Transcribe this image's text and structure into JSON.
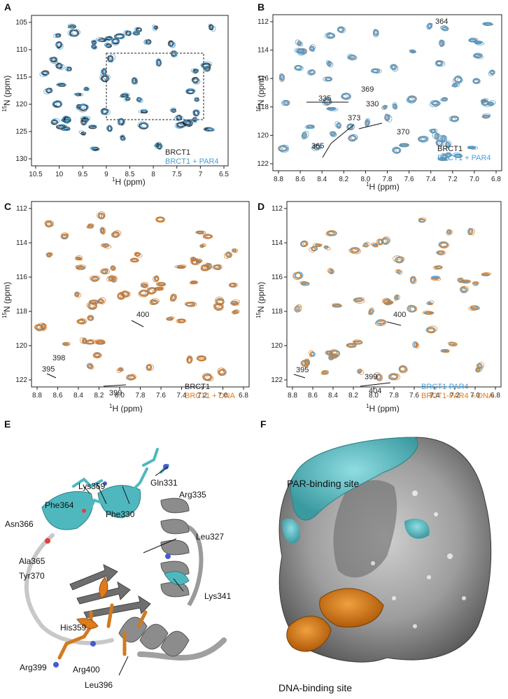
{
  "panels": {
    "A": {
      "letter": "A",
      "ylabel_prefix": "15",
      "ylabel_main": "N (ppm)",
      "xlabel_prefix": "1",
      "xlabel_main": "H (ppm)",
      "xticks": [
        "10.5",
        "10",
        "9.5",
        "9",
        "8.5",
        "8",
        "7.5",
        "7",
        "6.5"
      ],
      "yticks": [
        "105",
        "110",
        "115",
        "120",
        "125",
        "130"
      ],
      "legend": [
        {
          "text": "BRCT1",
          "color": "#1a1a1a"
        },
        {
          "text": "BRCT1 + PAR4",
          "color": "#4a9fd5"
        }
      ]
    },
    "B": {
      "letter": "B",
      "ylabel_prefix": "15",
      "ylabel_main": "N (ppm)",
      "xlabel_prefix": "1",
      "xlabel_main": "H (ppm)",
      "xticks": [
        "8.8",
        "8.6",
        "8.4",
        "8.2",
        "8.0",
        "7.8",
        "7.6",
        "7.4",
        "7.2",
        "7.0",
        "6.8"
      ],
      "yticks": [
        "112",
        "114",
        "116",
        "118",
        "120",
        "122"
      ],
      "annotations": [
        "364",
        "369",
        "335",
        "330",
        "373",
        "370",
        "365"
      ],
      "legend": [
        {
          "text": "BRCT1",
          "color": "#1a1a1a"
        },
        {
          "text": "BRCT1 + PAR4",
          "color": "#4a9fd5"
        }
      ]
    },
    "C": {
      "letter": "C",
      "ylabel_prefix": "15",
      "ylabel_main": "N (ppm)",
      "xlabel_prefix": "1",
      "xlabel_main": "H (ppm)",
      "xticks": [
        "8.8",
        "8.6",
        "8.4",
        "8.2",
        "8.0",
        "7.8",
        "7.6",
        "7.4",
        "7.2",
        "7.0",
        "6.8"
      ],
      "yticks": [
        "112",
        "114",
        "116",
        "118",
        "120",
        "122"
      ],
      "annotations": [
        "400",
        "398",
        "395",
        "399"
      ],
      "legend": [
        {
          "text": "BRCT1",
          "color": "#1a1a1a"
        },
        {
          "text": "BRCT1 + DNA",
          "color": "#e07a1a"
        }
      ]
    },
    "D": {
      "letter": "D",
      "ylabel_prefix": "15",
      "ylabel_main": "N (ppm)",
      "xlabel_prefix": "1",
      "xlabel_main": "H (ppm)",
      "xticks": [
        "8.8",
        "8.6",
        "8.4",
        "8.2",
        "8.0",
        "7.8",
        "7.6",
        "7.4",
        "7.2",
        "7.0",
        "6.8"
      ],
      "yticks": [
        "112",
        "114",
        "116",
        "118",
        "120",
        "122"
      ],
      "annotations": [
        "400",
        "395",
        "399",
        "404"
      ],
      "legend": [
        {
          "text": "BRCT1-PAR4",
          "color": "#4a9fd5"
        },
        {
          "text": "BRCT1-PAR4 + DNA",
          "color": "#e07a1a"
        }
      ]
    },
    "E": {
      "letter": "E",
      "residues": [
        "Lys369",
        "Gln331",
        "Phe364",
        "Phe330",
        "Arg335",
        "Asn366",
        "Leu327",
        "Ala365",
        "Tyr370",
        "Lys341",
        "His359",
        "Arg399",
        "Arg400",
        "Leu396"
      ]
    },
    "F": {
      "letter": "F",
      "par_site": "PAR-binding site",
      "dna_site": "DNA-binding site"
    }
  },
  "colors": {
    "brct1": "#1a1a1a",
    "par4": "#4a9fd5",
    "dna": "#e07a1a",
    "cyan": "#4fb8bf",
    "grey": "#7a7a7a"
  }
}
